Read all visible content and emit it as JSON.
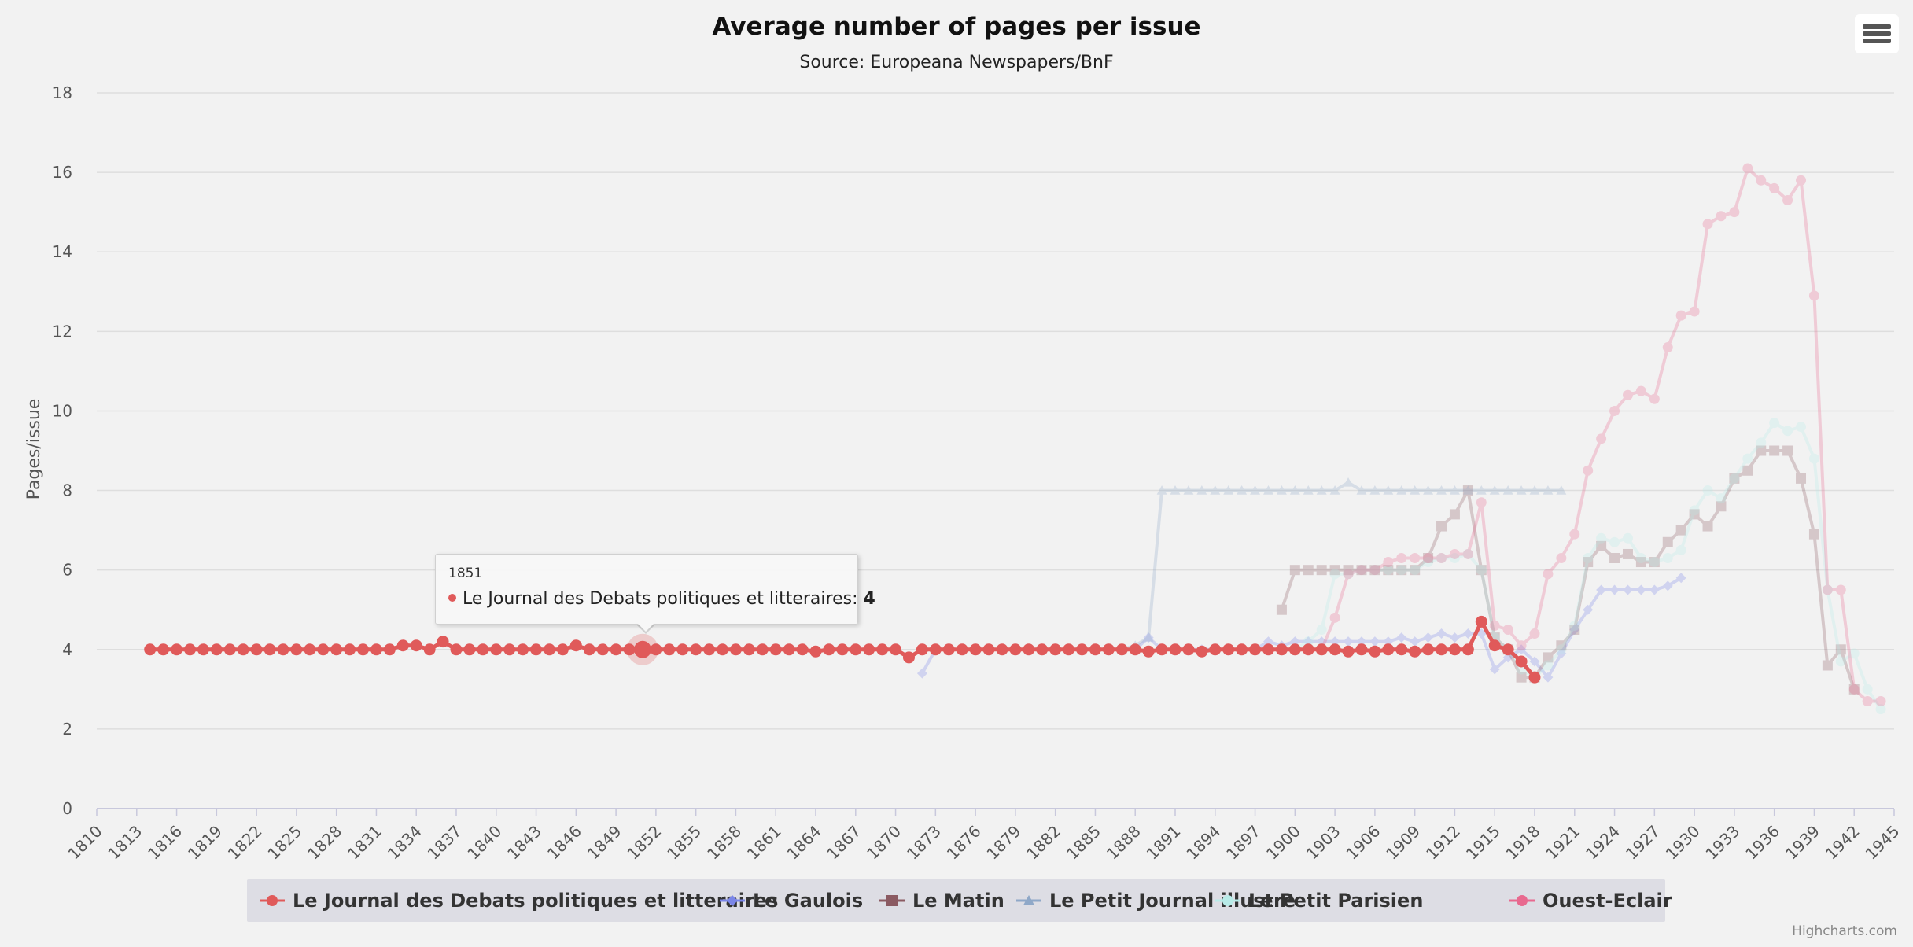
{
  "chart_data": {
    "type": "line",
    "title": "Average number of pages per issue",
    "subtitle": "Source: Europeana Newspapers/BnF",
    "ylabel": "Pages/issue",
    "xlabel": "",
    "xlim": [
      1810,
      1945
    ],
    "ylim": [
      0,
      18
    ],
    "x_ticks": [
      1810,
      1813,
      1816,
      1819,
      1822,
      1825,
      1828,
      1831,
      1834,
      1837,
      1840,
      1843,
      1846,
      1849,
      1852,
      1855,
      1858,
      1861,
      1864,
      1867,
      1870,
      1873,
      1876,
      1879,
      1882,
      1885,
      1888,
      1891,
      1894,
      1897,
      1900,
      1903,
      1906,
      1909,
      1912,
      1915,
      1918,
      1921,
      1924,
      1927,
      1930,
      1933,
      1936,
      1939,
      1942,
      1945
    ],
    "y_ticks": [
      0,
      2,
      4,
      6,
      8,
      10,
      12,
      14,
      16,
      18
    ],
    "grid": true,
    "legend_position": "bottom",
    "series": [
      {
        "name": "Le Journal des Debats politiques et litteraires",
        "color": "#e05a5a",
        "marker": "circle",
        "highlighted": true,
        "x": [
          1814,
          1815,
          1816,
          1817,
          1818,
          1819,
          1820,
          1821,
          1822,
          1823,
          1824,
          1825,
          1826,
          1827,
          1828,
          1829,
          1830,
          1831,
          1832,
          1833,
          1834,
          1835,
          1836,
          1837,
          1838,
          1839,
          1840,
          1841,
          1842,
          1843,
          1844,
          1845,
          1846,
          1847,
          1848,
          1849,
          1850,
          1851,
          1852,
          1853,
          1854,
          1855,
          1856,
          1857,
          1858,
          1859,
          1860,
          1861,
          1862,
          1863,
          1864,
          1865,
          1866,
          1867,
          1868,
          1869,
          1870,
          1871,
          1872,
          1873,
          1874,
          1875,
          1876,
          1877,
          1878,
          1879,
          1880,
          1881,
          1882,
          1883,
          1884,
          1885,
          1886,
          1887,
          1888,
          1889,
          1890,
          1891,
          1892,
          1893,
          1894,
          1895,
          1896,
          1897,
          1898,
          1899,
          1900,
          1901,
          1902,
          1903,
          1904,
          1905,
          1906,
          1907,
          1908,
          1909,
          1910,
          1911,
          1912,
          1913,
          1914,
          1915,
          1916,
          1917,
          1918
        ],
        "y": [
          4,
          4,
          4,
          4,
          4,
          4,
          4,
          4,
          4,
          4,
          4,
          4,
          4,
          4,
          4,
          4,
          4,
          4,
          4,
          4.1,
          4.1,
          4,
          4.2,
          4,
          4,
          4,
          4,
          4,
          4,
          4,
          4,
          4,
          4.1,
          4,
          4,
          4,
          4,
          4,
          4,
          4,
          4,
          4,
          4,
          4,
          4,
          4,
          4,
          4,
          4,
          4,
          3.95,
          4,
          4,
          4,
          4,
          4,
          4,
          3.8,
          4,
          4,
          4,
          4,
          4,
          4,
          4,
          4,
          4,
          4,
          4,
          4,
          4,
          4,
          4,
          4,
          4,
          3.95,
          4,
          4,
          4,
          3.95,
          4,
          4,
          4,
          4,
          4,
          4,
          4,
          4,
          4,
          4,
          3.95,
          4,
          3.95,
          4,
          4,
          3.95,
          4,
          4,
          4,
          4,
          4.7,
          4.1,
          4,
          3.7,
          3.3
        ]
      },
      {
        "name": "Le Gaulois",
        "color": "#7b86e8",
        "marker": "diamond",
        "highlighted": false,
        "x": [
          1872,
          1873,
          1874,
          1875,
          1876,
          1877,
          1878,
          1879,
          1880,
          1881,
          1882,
          1883,
          1884,
          1885,
          1886,
          1887,
          1888,
          1889,
          1890,
          1891,
          1892,
          1893,
          1894,
          1895,
          1896,
          1897,
          1898,
          1899,
          1900,
          1901,
          1902,
          1903,
          1904,
          1905,
          1906,
          1907,
          1908,
          1909,
          1910,
          1911,
          1912,
          1913,
          1914,
          1915,
          1916,
          1917,
          1918,
          1919,
          1920,
          1921,
          1922,
          1923,
          1924,
          1925,
          1926,
          1927,
          1928,
          1929
        ],
        "y": [
          3.4,
          4,
          4,
          4,
          4,
          4,
          4,
          4,
          4,
          4,
          4,
          4,
          4,
          4,
          4,
          4,
          4,
          4.3,
          4,
          4,
          4,
          4,
          4,
          4,
          4,
          4,
          4.2,
          4.1,
          4.2,
          4.2,
          4.2,
          4.2,
          4.2,
          4.2,
          4.2,
          4.2,
          4.3,
          4.2,
          4.3,
          4.4,
          4.3,
          4.4,
          4.4,
          3.5,
          3.8,
          4,
          3.7,
          3.3,
          3.9,
          4.5,
          5,
          5.5,
          5.5,
          5.5,
          5.5,
          5.5,
          5.6,
          5.8
        ]
      },
      {
        "name": "Le Matin",
        "color": "#8b5a62",
        "marker": "square",
        "highlighted": false,
        "x": [
          1899,
          1900,
          1901,
          1902,
          1903,
          1904,
          1905,
          1906,
          1907,
          1908,
          1909,
          1910,
          1911,
          1912,
          1913,
          1914,
          1915,
          1916,
          1917,
          1918,
          1919,
          1920,
          1921,
          1922,
          1923,
          1924,
          1925,
          1926,
          1927,
          1928,
          1929,
          1930,
          1931,
          1932,
          1933,
          1934,
          1935,
          1936,
          1937,
          1938,
          1939,
          1940,
          1941,
          1942
        ],
        "y": [
          5,
          6,
          6,
          6,
          6,
          6,
          6,
          6,
          6,
          6,
          6,
          6.3,
          7.1,
          7.4,
          8,
          6,
          4.3,
          4,
          3.3,
          3.3,
          3.8,
          4.1,
          4.5,
          6.2,
          6.6,
          6.3,
          6.4,
          6.2,
          6.2,
          6.7,
          7,
          7.4,
          7.1,
          7.6,
          8.3,
          8.5,
          9,
          9,
          9,
          8.3,
          6.9,
          3.6,
          4,
          3
        ]
      },
      {
        "name": "Le Petit Journal illustre",
        "color": "#8fa8c8",
        "marker": "triangle",
        "highlighted": false,
        "x": [
          1887,
          1888,
          1889,
          1890,
          1891,
          1892,
          1893,
          1894,
          1895,
          1896,
          1897,
          1898,
          1899,
          1900,
          1901,
          1902,
          1903,
          1904,
          1905,
          1906,
          1907,
          1908,
          1909,
          1910,
          1911,
          1912,
          1913,
          1914,
          1915,
          1916,
          1917,
          1918,
          1919,
          1920
        ],
        "y": [
          4,
          4.1,
          4.3,
          8,
          8,
          8,
          8,
          8,
          8,
          8,
          8,
          8,
          8,
          8,
          8,
          8,
          8,
          8.2,
          8,
          8,
          8,
          8,
          8,
          8,
          8,
          8,
          8,
          8,
          8,
          8,
          8,
          8,
          8,
          8
        ]
      },
      {
        "name": "Le Petit Parisien",
        "color": "#b8ebe8",
        "marker": "circle",
        "highlighted": false,
        "x": [
          1900,
          1901,
          1902,
          1903,
          1904,
          1905,
          1906,
          1907,
          1908,
          1909,
          1910,
          1911,
          1912,
          1913,
          1914,
          1915,
          1916,
          1917,
          1918,
          1919,
          1920,
          1921,
          1922,
          1923,
          1924,
          1925,
          1926,
          1927,
          1928,
          1929,
          1930,
          1931,
          1932,
          1933,
          1934,
          1935,
          1936,
          1937,
          1938,
          1939,
          1940,
          1941,
          1942,
          1943,
          1944
        ],
        "y": [
          4,
          4.2,
          4.5,
          5.9,
          5.9,
          6,
          6,
          6,
          6,
          6,
          6.2,
          6.3,
          6.3,
          6.4,
          6,
          4.3,
          4,
          3.5,
          3.3,
          3.6,
          4,
          4.6,
          6.3,
          6.8,
          6.7,
          6.8,
          6.3,
          6.2,
          6.3,
          6.5,
          7.5,
          8,
          7.8,
          8.3,
          8.8,
          9.2,
          9.7,
          9.5,
          9.6,
          8.8,
          5.5,
          3.7,
          3.9,
          3,
          2.5
        ]
      },
      {
        "name": "Ouest-Eclair",
        "color": "#e8698f",
        "marker": "circle",
        "highlighted": false,
        "x": [
          1899,
          1900,
          1901,
          1902,
          1903,
          1904,
          1905,
          1906,
          1907,
          1908,
          1909,
          1910,
          1911,
          1912,
          1913,
          1914,
          1915,
          1916,
          1917,
          1918,
          1919,
          1920,
          1921,
          1922,
          1923,
          1924,
          1925,
          1926,
          1927,
          1928,
          1929,
          1930,
          1931,
          1932,
          1933,
          1934,
          1935,
          1936,
          1937,
          1938,
          1939,
          1940,
          1941,
          1942,
          1943,
          1944
        ],
        "y": [
          4,
          4,
          4,
          4,
          4.8,
          5.9,
          6,
          6,
          6.2,
          6.3,
          6.3,
          6.3,
          6.3,
          6.4,
          6.4,
          7.7,
          4.6,
          4.5,
          4.1,
          4.4,
          5.9,
          6.3,
          6.9,
          8.5,
          9.3,
          10,
          10.4,
          10.5,
          10.3,
          11.6,
          12.4,
          12.5,
          14.7,
          14.9,
          15,
          16.1,
          15.8,
          15.6,
          15.3,
          15.8,
          12.9,
          5.5,
          5.5,
          3,
          2.7,
          2.7
        ]
      }
    ],
    "tooltip": {
      "x_label": "1851",
      "series_name": "Le Journal des Debats politiques et litteraires",
      "separator": ": ",
      "value": "4"
    }
  },
  "menu": {
    "icon": "hamburger-menu-icon"
  },
  "credits": "Highcharts.com"
}
